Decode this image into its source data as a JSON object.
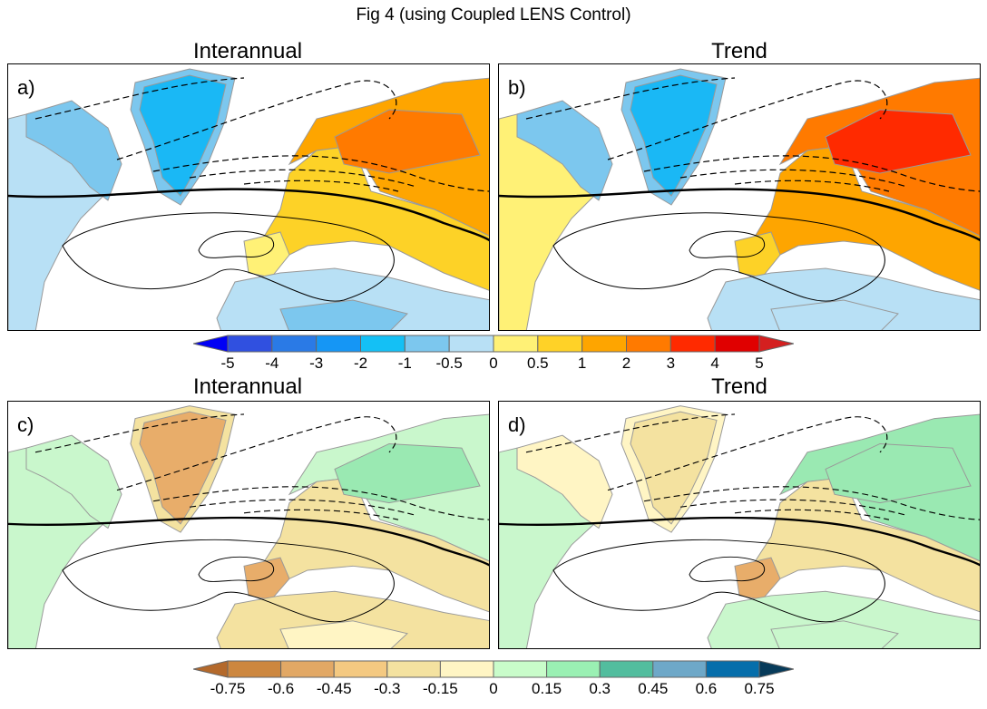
{
  "figure_title": "Fig 4 (using Coupled LENS Control)",
  "panels": [
    {
      "label": "a)",
      "title": "Interannual",
      "fills": {
        "greenland": "#1ab8f5",
        "greenland_edge": "#7cc7ee",
        "namerica": "#b8e0f5",
        "canada": "#7cc7ee",
        "europe": "#fdd227",
        "russia": "#fea500",
        "russia_core": "#ff7a00",
        "africa": "#b8e0f5",
        "africa_south": "#7cc7ee",
        "iberia": "#fff176"
      }
    },
    {
      "label": "b)",
      "title": "Trend",
      "fills": {
        "greenland": "#1ab8f5",
        "greenland_edge": "#7cc7ee",
        "namerica": "#fff176",
        "canada": "#7cc7ee",
        "europe": "#fea500",
        "russia": "#ff7a00",
        "russia_core": "#ff2a00",
        "africa": "#b8e0f5",
        "africa_south": "#b8e0f5",
        "iberia": "#fdd227"
      }
    },
    {
      "label": "c)",
      "title": "Interannual",
      "fills": {
        "greenland": "#e8ad6a",
        "greenland_edge": "#f4e2a0",
        "namerica": "#c9f7cc",
        "canada": "#c9f7cc",
        "europe": "#f4e2a0",
        "russia": "#c9f7cc",
        "russia_core": "#9ae9b2",
        "africa": "#f4e2a0",
        "africa_south": "#fff5c4",
        "iberia": "#e8ad6a"
      }
    },
    {
      "label": "d)",
      "title": "Trend",
      "fills": {
        "greenland": "#f4e2a0",
        "greenland_edge": "#fff5c4",
        "namerica": "#c9f7cc",
        "canada": "#fff5c4",
        "europe": "#f4e2a0",
        "russia": "#9ae9b2",
        "russia_core": "#9ae9b2",
        "africa": "#c9f7cc",
        "africa_south": "#c9f7cc",
        "iberia": "#e8ad6a"
      }
    }
  ],
  "colorbar_top": {
    "labels": [
      "-5",
      "-4",
      "-3",
      "-2",
      "-1",
      "-0.5",
      "0",
      "0.5",
      "1",
      "2",
      "3",
      "4",
      "5"
    ],
    "colors": [
      "#0000f5",
      "#3050e0",
      "#2a7ae6",
      "#1596f5",
      "#14c0f5",
      "#7cc7ee",
      "#b8e0f5",
      "#fff176",
      "#ffd227",
      "#fea500",
      "#ff7a00",
      "#ff2a00",
      "#e00000",
      "#d42020"
    ]
  },
  "colorbar_bottom": {
    "labels": [
      "-0.75",
      "-0.6",
      "-0.45",
      "-0.3",
      "-0.15",
      "0",
      "0.15",
      "0.3",
      "0.45",
      "0.6",
      "0.75"
    ],
    "colors": [
      "#b4692b",
      "#cd873f",
      "#e2a865",
      "#f4c981",
      "#f4e2a0",
      "#fff5c4",
      "#c9fcca",
      "#9af0b3",
      "#52bd9e",
      "#6ea8c8",
      "#056eab",
      "#073b5a"
    ]
  }
}
